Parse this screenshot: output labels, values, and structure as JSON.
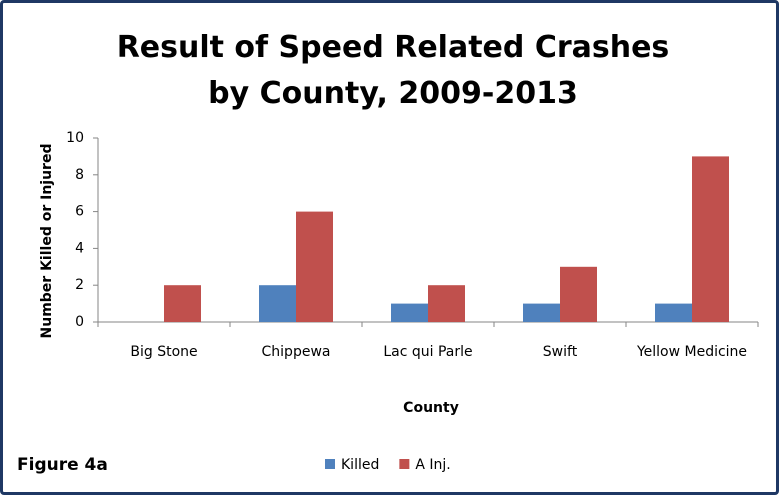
{
  "chart_data": {
    "type": "bar",
    "title": "Result of Speed Related Crashes by County, 2009-2013",
    "x_label": "County",
    "y_label": "Number Killed or Injured",
    "annotation": "Figure 4a",
    "categories": [
      "Big Stone",
      "Chippewa",
      "Lac qui Parle",
      "Swift",
      "Yellow Medicine"
    ],
    "series": [
      {
        "name": "Killed",
        "color": "#4f81bd",
        "values": [
          0,
          2,
          1,
          1,
          1
        ]
      },
      {
        "name": "A Inj.",
        "color": "#c0504d",
        "values": [
          2,
          6,
          2,
          3,
          9
        ]
      }
    ],
    "ylim": [
      0,
      10
    ],
    "yticks": [
      0,
      2,
      4,
      6,
      8,
      10
    ],
    "grid": false,
    "legend": "bottom"
  }
}
